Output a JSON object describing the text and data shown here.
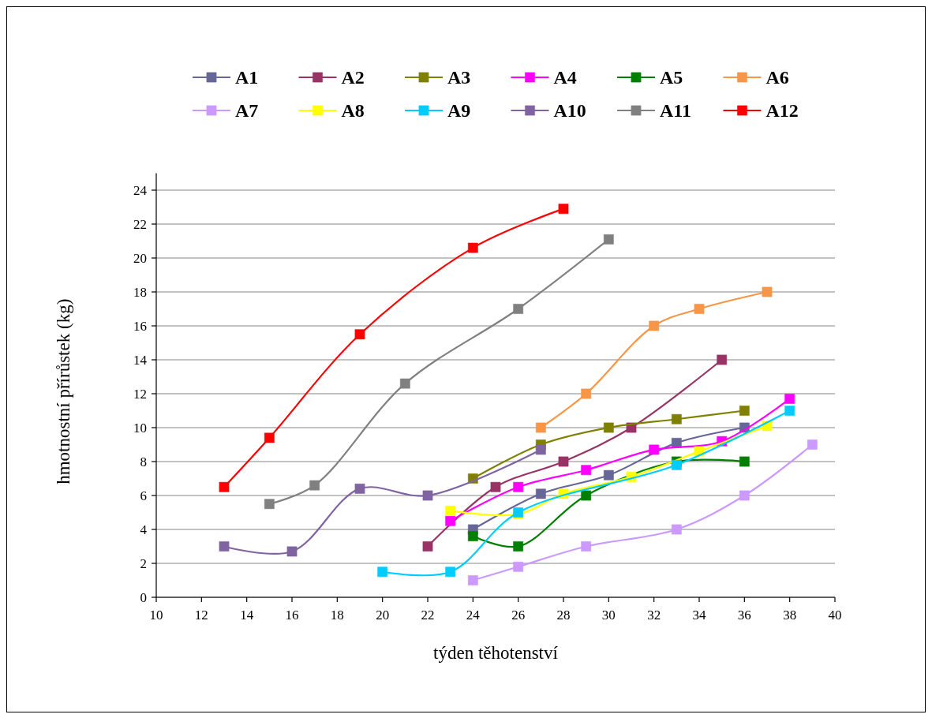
{
  "chart_data": {
    "type": "line",
    "xlabel": "týden těhotenství",
    "ylabel": "hmotnostní přírůstek (kg)",
    "xlim": [
      10,
      40
    ],
    "xticks": [
      10,
      12,
      14,
      16,
      18,
      20,
      22,
      24,
      26,
      28,
      30,
      32,
      34,
      36,
      38,
      40
    ],
    "ylim": [
      0,
      25
    ],
    "yticks": [
      0,
      2,
      4,
      6,
      8,
      10,
      12,
      14,
      16,
      18,
      20,
      22,
      24
    ],
    "grid": "y",
    "legend": "top",
    "marker": "square",
    "series": [
      {
        "name": "A1",
        "color": "#666699",
        "x": [
          24,
          27,
          30,
          33,
          36
        ],
        "values": [
          4.0,
          6.1,
          7.2,
          9.1,
          10.0
        ]
      },
      {
        "name": "A2",
        "color": "#993366",
        "x": [
          22,
          25,
          28,
          31,
          35
        ],
        "values": [
          3.0,
          6.5,
          8.0,
          10.0,
          14.0
        ]
      },
      {
        "name": "A3",
        "color": "#808000",
        "x": [
          24,
          27,
          30,
          33,
          36
        ],
        "values": [
          7.0,
          9.0,
          10.0,
          10.5,
          11.0
        ]
      },
      {
        "name": "A4",
        "color": "#ff00ff",
        "x": [
          23,
          26,
          29,
          32,
          35,
          38
        ],
        "values": [
          4.5,
          6.5,
          7.5,
          8.7,
          9.2,
          11.7
        ]
      },
      {
        "name": "A5",
        "color": "#008000",
        "x": [
          24,
          26,
          29,
          33,
          36
        ],
        "values": [
          3.6,
          3.0,
          6.0,
          8.0,
          8.0
        ]
      },
      {
        "name": "A6",
        "color": "#f79646",
        "x": [
          27,
          29,
          32,
          34,
          37
        ],
        "values": [
          10.0,
          12.0,
          16.0,
          17.0,
          18.0
        ]
      },
      {
        "name": "A7",
        "color": "#cc99ff",
        "x": [
          24,
          26,
          29,
          33,
          36,
          39
        ],
        "values": [
          1.0,
          1.8,
          3.0,
          4.0,
          6.0,
          9.0
        ]
      },
      {
        "name": "A8",
        "color": "#ffff00",
        "x": [
          23,
          26,
          28,
          31,
          34,
          37
        ],
        "values": [
          5.1,
          4.9,
          6.1,
          7.1,
          8.6,
          10.1
        ]
      },
      {
        "name": "A9",
        "color": "#00ccff",
        "x": [
          20,
          23,
          26,
          33,
          38
        ],
        "values": [
          1.5,
          1.5,
          5.0,
          7.8,
          11.0
        ]
      },
      {
        "name": "A10",
        "color": "#8064a2",
        "x": [
          13,
          16,
          19,
          22,
          27
        ],
        "values": [
          3.0,
          2.7,
          6.4,
          6.0,
          8.7
        ]
      },
      {
        "name": "A11",
        "color": "#808080",
        "x": [
          15,
          17,
          21,
          26,
          30
        ],
        "values": [
          5.5,
          6.6,
          12.6,
          17.0,
          21.1
        ]
      },
      {
        "name": "A12",
        "color": "#ff0000",
        "x": [
          13,
          15,
          19,
          24,
          28
        ],
        "values": [
          6.5,
          9.4,
          15.5,
          20.6,
          22.9
        ]
      }
    ]
  }
}
